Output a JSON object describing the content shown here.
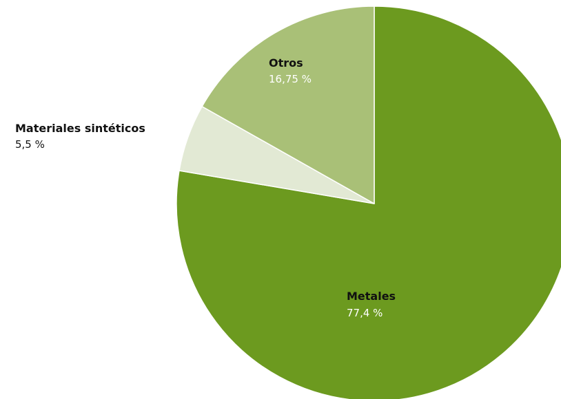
{
  "chart_data": {
    "type": "pie",
    "categories": [
      "Metales",
      "Materiales sintéticos",
      "Otros"
    ],
    "values": [
      77.4,
      5.5,
      16.75
    ],
    "value_labels": [
      "77,4 %",
      "5,5 %",
      "16,75 %"
    ],
    "colors": [
      "#6c9a1f",
      "#e2e9d4",
      "#a9c077"
    ],
    "value_label_colors": [
      "#ffffff",
      "#111111",
      "#ffffff"
    ],
    "legend": "none",
    "start_angle": "12 o'clock",
    "direction": "clockwise"
  }
}
